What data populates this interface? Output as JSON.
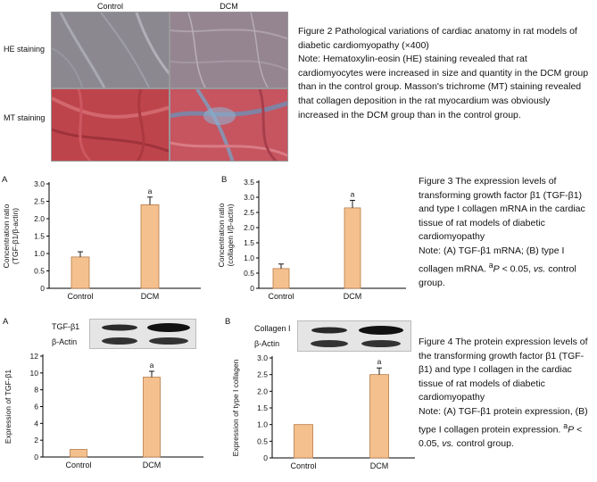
{
  "figure2": {
    "columns": [
      "Control",
      "DCM"
    ],
    "rows": [
      "HE staining",
      "MT staining"
    ],
    "title": "Figure 2    Pathological variations of cardiac anatomy in rat models of diabetic cardiomyopathy (×400)",
    "note": "Note: Hematoxylin-eosin (HE) staining revealed that rat cardiomyocytes were increased in size and quantity in the DCM group than in the control group. Masson's trichrome (MT) staining revealed that collagen deposition in the rat myocardium was obviously increased in the DCM group than in the control group."
  },
  "figure3": {
    "title": "Figure 3    The expression levels of transforming growth factor β1 (TGF-β1) and type I collagen mRNA in the cardiac tissue of rat models of diabetic cardiomyopathy",
    "note_text": "Note: (A) TGF-β1 mRNA; (B) type I collagen mRNA. ",
    "note_sup": "a",
    "note_p": "P",
    "note_p_rest": " < 0.05, ",
    "note_vs": "vs.",
    "note_end": " control group."
  },
  "figure4": {
    "title": "Figure 4    The protein expression levels of the transforming growth factor β1 (TGF-β1) and type I collagen in the cardiac tissue of rat models of diabetic cardiomyopathy",
    "note_text": "Note: (A) TGF-β1 protein expression, (B) type I collagen protein expression. ",
    "note_sup": "a",
    "note_p": "P",
    "note_p_rest": " < 0.05, ",
    "note_vs": "vs.",
    "note_end": " control group.",
    "blot_a_labels": [
      "TGF-β1",
      "β-Actin"
    ],
    "blot_b_labels": [
      "Collagen I",
      "β-Actin"
    ]
  },
  "colors": {
    "bar": "#f4c08e",
    "bar_stroke": "#b77a45"
  },
  "chart_data": [
    {
      "id": "fig3A",
      "type": "bar",
      "panel": "A",
      "categories": [
        "Control",
        "DCM"
      ],
      "values": [
        0.9,
        2.4
      ],
      "errors": [
        0.15,
        0.22
      ],
      "ylabel": "Concentration ratio (TGF-β1/β-actin)",
      "ylim": [
        0,
        3.0
      ],
      "yticks": [
        "0",
        "0.5",
        "1.0",
        "1.5",
        "2.0",
        "2.5",
        "3.0"
      ],
      "sig_labels": [
        "",
        "a"
      ]
    },
    {
      "id": "fig3B",
      "type": "bar",
      "panel": "B",
      "categories": [
        "Control",
        "DCM"
      ],
      "values": [
        0.65,
        2.65
      ],
      "errors": [
        0.15,
        0.25
      ],
      "ylabel": "Concentration ratio (collagen I/β-actin)",
      "ylim": [
        0,
        3.5
      ],
      "yticks": [
        "0",
        "0.5",
        "1.0",
        "1.5",
        "2.0",
        "2.5",
        "3.0",
        "3.5"
      ],
      "sig_labels": [
        "",
        "a"
      ]
    },
    {
      "id": "fig4A",
      "type": "bar",
      "panel": "A",
      "categories": [
        "Control",
        "DCM"
      ],
      "values": [
        0.9,
        9.5
      ],
      "errors": [
        0,
        0.7
      ],
      "ylabel": "Expression of TGF-β1",
      "ylim": [
        0,
        12
      ],
      "yticks": [
        "0",
        "2",
        "4",
        "6",
        "8",
        "10",
        "12"
      ],
      "sig_labels": [
        "",
        "a"
      ]
    },
    {
      "id": "fig4B",
      "type": "bar",
      "panel": "B",
      "categories": [
        "Control",
        "DCM"
      ],
      "values": [
        1.0,
        2.5
      ],
      "errors": [
        0,
        0.2
      ],
      "ylabel": "Expression of type I collagen",
      "ylim": [
        0,
        3.0
      ],
      "yticks": [
        "0",
        "0.5",
        "1.0",
        "1.5",
        "2.0",
        "2.5",
        "3.0"
      ],
      "sig_labels": [
        "",
        "a"
      ]
    }
  ]
}
